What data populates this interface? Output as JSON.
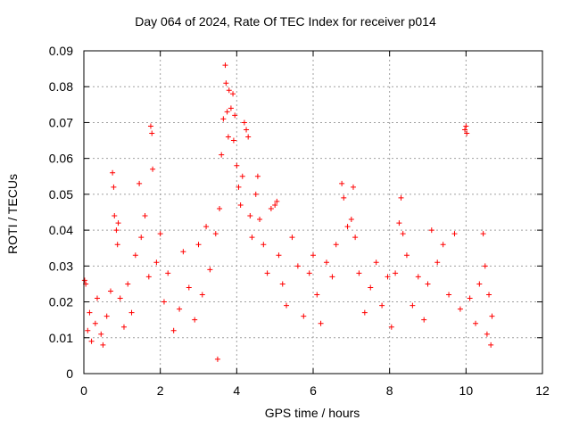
{
  "chart_data": {
    "type": "scatter",
    "title": "Day 064 of 2024, Rate Of TEC Index for receiver p014",
    "xlabel": "GPS time / hours",
    "ylabel": "ROTI / TECUs",
    "xlim": [
      0,
      12
    ],
    "ylim": [
      0,
      0.09
    ],
    "xticks": [
      0,
      2,
      4,
      6,
      8,
      10,
      12
    ],
    "yticks": [
      0,
      0.01,
      0.02,
      0.03,
      0.04,
      0.05,
      0.06,
      0.07,
      0.08,
      0.09
    ],
    "xtick_labels": [
      "0",
      "2",
      "4",
      "6",
      "8",
      "10",
      "12"
    ],
    "ytick_labels": [
      "0",
      "0.01",
      "0.02",
      "0.03",
      "0.04",
      "0.05",
      "0.06",
      "0.07",
      "0.08",
      "0.09"
    ],
    "grid": true,
    "marker": "+",
    "color": "#ff0000",
    "series": [
      {
        "name": "ROTI",
        "points": [
          [
            0.02,
            0.026
          ],
          [
            0.05,
            0.025
          ],
          [
            0.1,
            0.012
          ],
          [
            0.15,
            0.017
          ],
          [
            0.2,
            0.009
          ],
          [
            0.3,
            0.014
          ],
          [
            0.35,
            0.021
          ],
          [
            0.45,
            0.011
          ],
          [
            0.5,
            0.008
          ],
          [
            0.6,
            0.016
          ],
          [
            0.7,
            0.023
          ],
          [
            0.75,
            0.056
          ],
          [
            0.78,
            0.052
          ],
          [
            0.8,
            0.044
          ],
          [
            0.85,
            0.04
          ],
          [
            0.88,
            0.036
          ],
          [
            0.9,
            0.042
          ],
          [
            0.95,
            0.021
          ],
          [
            1.05,
            0.013
          ],
          [
            1.15,
            0.025
          ],
          [
            1.25,
            0.017
          ],
          [
            1.35,
            0.033
          ],
          [
            1.45,
            0.053
          ],
          [
            1.5,
            0.038
          ],
          [
            1.6,
            0.044
          ],
          [
            1.7,
            0.027
          ],
          [
            1.75,
            0.069
          ],
          [
            1.78,
            0.067
          ],
          [
            1.8,
            0.057
          ],
          [
            1.9,
            0.031
          ],
          [
            2.0,
            0.039
          ],
          [
            2.1,
            0.02
          ],
          [
            2.2,
            0.028
          ],
          [
            2.35,
            0.012
          ],
          [
            2.5,
            0.018
          ],
          [
            2.6,
            0.034
          ],
          [
            2.75,
            0.024
          ],
          [
            2.9,
            0.015
          ],
          [
            3.0,
            0.036
          ],
          [
            3.1,
            0.022
          ],
          [
            3.2,
            0.041
          ],
          [
            3.3,
            0.029
          ],
          [
            3.45,
            0.039
          ],
          [
            3.5,
            0.004
          ],
          [
            3.55,
            0.046
          ],
          [
            3.6,
            0.061
          ],
          [
            3.65,
            0.071
          ],
          [
            3.7,
            0.086
          ],
          [
            3.72,
            0.081
          ],
          [
            3.75,
            0.073
          ],
          [
            3.78,
            0.066
          ],
          [
            3.8,
            0.079
          ],
          [
            3.85,
            0.074
          ],
          [
            3.9,
            0.078
          ],
          [
            3.92,
            0.065
          ],
          [
            3.95,
            0.072
          ],
          [
            4.0,
            0.058
          ],
          [
            4.05,
            0.052
          ],
          [
            4.1,
            0.047
          ],
          [
            4.15,
            0.055
          ],
          [
            4.2,
            0.07
          ],
          [
            4.25,
            0.068
          ],
          [
            4.3,
            0.066
          ],
          [
            4.35,
            0.044
          ],
          [
            4.4,
            0.038
          ],
          [
            4.5,
            0.05
          ],
          [
            4.55,
            0.055
          ],
          [
            4.6,
            0.043
          ],
          [
            4.7,
            0.036
          ],
          [
            4.8,
            0.028
          ],
          [
            4.9,
            0.046
          ],
          [
            5.0,
            0.047
          ],
          [
            5.05,
            0.048
          ],
          [
            5.1,
            0.033
          ],
          [
            5.2,
            0.025
          ],
          [
            5.3,
            0.019
          ],
          [
            5.45,
            0.038
          ],
          [
            5.6,
            0.03
          ],
          [
            5.75,
            0.016
          ],
          [
            5.9,
            0.028
          ],
          [
            6.0,
            0.033
          ],
          [
            6.1,
            0.022
          ],
          [
            6.2,
            0.014
          ],
          [
            6.35,
            0.031
          ],
          [
            6.5,
            0.027
          ],
          [
            6.6,
            0.036
          ],
          [
            6.75,
            0.053
          ],
          [
            6.8,
            0.049
          ],
          [
            6.9,
            0.041
          ],
          [
            7.0,
            0.043
          ],
          [
            7.05,
            0.052
          ],
          [
            7.1,
            0.038
          ],
          [
            7.2,
            0.028
          ],
          [
            7.35,
            0.017
          ],
          [
            7.5,
            0.024
          ],
          [
            7.65,
            0.031
          ],
          [
            7.8,
            0.019
          ],
          [
            7.95,
            0.027
          ],
          [
            8.05,
            0.013
          ],
          [
            8.15,
            0.028
          ],
          [
            8.25,
            0.042
          ],
          [
            8.3,
            0.049
          ],
          [
            8.35,
            0.039
          ],
          [
            8.45,
            0.033
          ],
          [
            8.6,
            0.019
          ],
          [
            8.75,
            0.027
          ],
          [
            8.9,
            0.015
          ],
          [
            9.0,
            0.025
          ],
          [
            9.1,
            0.04
          ],
          [
            9.25,
            0.031
          ],
          [
            9.4,
            0.036
          ],
          [
            9.55,
            0.022
          ],
          [
            9.7,
            0.039
          ],
          [
            9.85,
            0.018
          ],
          [
            9.97,
            0.068
          ],
          [
            10.0,
            0.069
          ],
          [
            10.02,
            0.067
          ],
          [
            10.1,
            0.021
          ],
          [
            10.25,
            0.014
          ],
          [
            10.35,
            0.025
          ],
          [
            10.45,
            0.039
          ],
          [
            10.5,
            0.03
          ],
          [
            10.55,
            0.011
          ],
          [
            10.6,
            0.022
          ],
          [
            10.65,
            0.008
          ],
          [
            10.68,
            0.016
          ]
        ]
      }
    ]
  }
}
